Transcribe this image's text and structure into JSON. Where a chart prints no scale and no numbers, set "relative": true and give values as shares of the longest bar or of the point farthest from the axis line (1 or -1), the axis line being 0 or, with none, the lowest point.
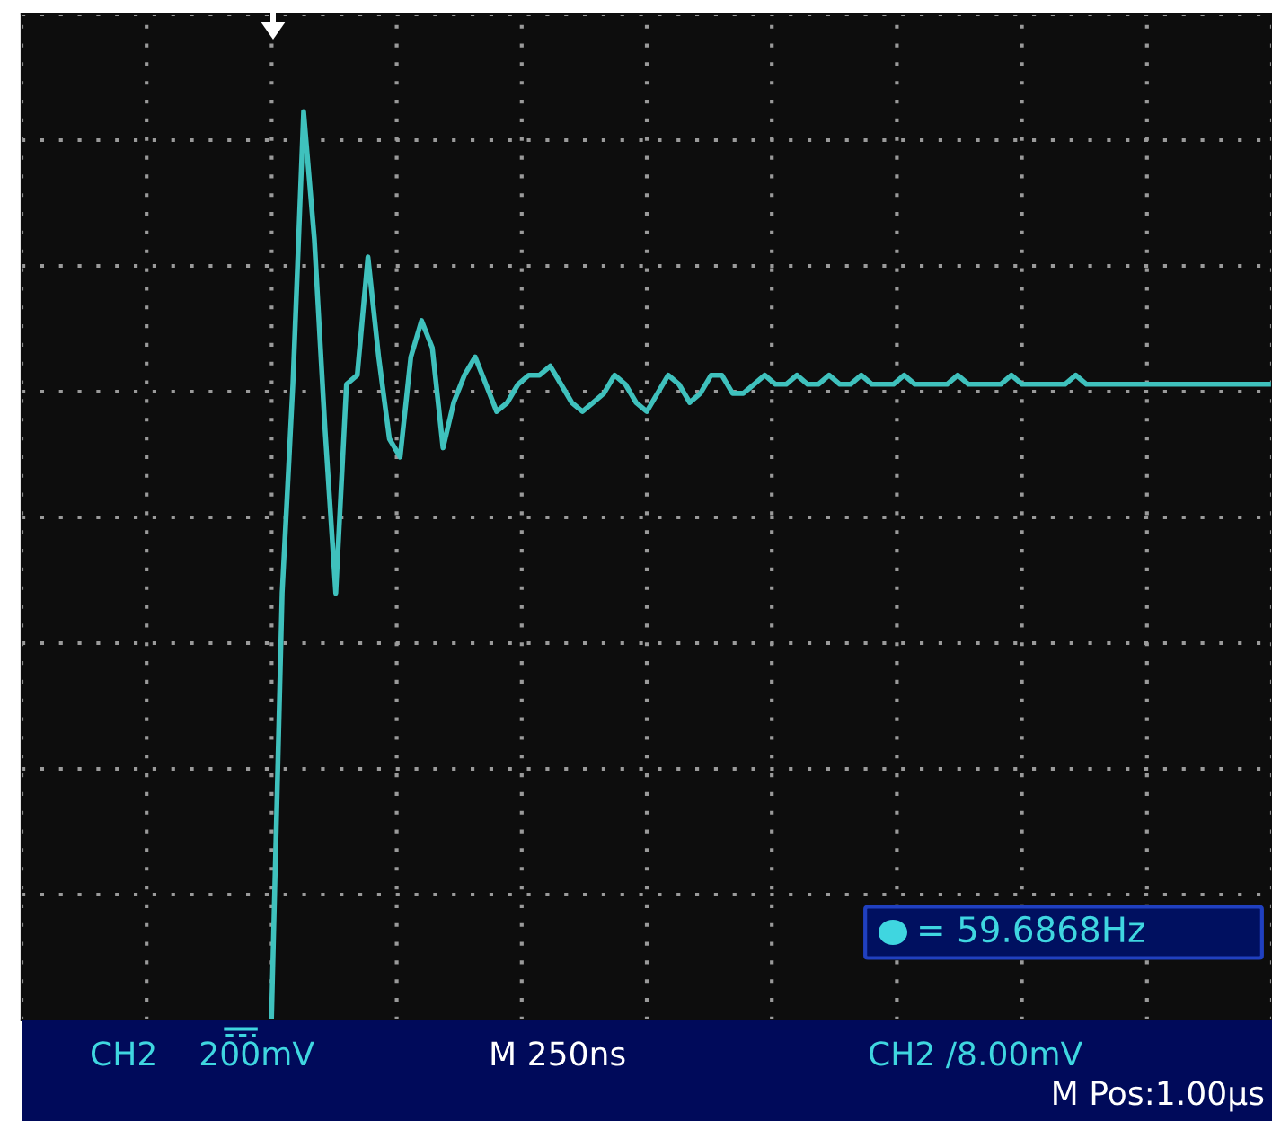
{
  "chart_data": {
    "type": "line",
    "relative": true,
    "grid": true,
    "tick_labels": false,
    "legend": false,
    "categories": [
      null,
      null,
      null,
      null,
      null,
      null,
      null,
      null,
      null,
      null,
      null,
      null,
      null,
      null,
      null,
      null,
      null,
      null,
      null,
      null,
      null,
      null,
      null,
      null,
      null,
      null,
      null,
      null,
      null,
      null,
      null,
      null,
      null,
      null,
      null,
      null,
      null,
      null,
      null,
      null,
      null,
      null,
      null,
      null,
      null,
      null,
      null,
      null,
      null,
      null,
      null,
      null,
      null,
      null,
      null,
      null,
      null,
      null,
      null,
      null,
      null,
      null,
      null,
      null,
      null,
      null,
      null,
      null,
      null,
      null,
      null,
      null,
      null,
      null,
      null,
      null,
      null,
      null,
      null,
      null,
      null,
      null,
      null,
      null,
      null,
      null,
      null,
      null,
      null,
      null,
      null,
      null,
      null,
      null,
      null,
      null,
      null,
      null,
      null,
      null,
      null,
      null,
      null,
      null,
      null,
      null,
      null,
      null,
      null,
      null,
      null,
      null,
      null,
      null,
      null,
      null,
      null
    ],
    "series": [
      {
        "color": "#3fc1bd",
        "values": [
          null,
          null,
          null,
          null,
          null,
          null,
          null,
          null,
          null,
          null,
          null,
          null,
          null,
          null,
          null,
          null,
          null,
          null,
          null,
          null,
          null,
          null,
          null,
          0,
          0.47,
          0.7,
          1.0,
          0.86,
          0.65,
          0.47,
          0.7,
          0.71,
          0.84,
          0.73,
          0.64,
          0.62,
          0.73,
          0.77,
          0.74,
          0.63,
          0.68,
          0.71,
          0.73,
          0.7,
          0.67,
          0.68,
          0.7,
          0.71,
          0.71,
          0.72,
          0.7,
          0.68,
          0.67,
          0.68,
          0.69,
          0.71,
          0.7,
          0.68,
          0.67,
          0.69,
          0.71,
          0.7,
          0.68,
          0.69,
          0.71,
          0.71,
          0.69,
          0.69,
          0.7,
          0.71,
          0.7,
          0.7,
          0.71,
          0.7,
          0.7,
          0.71,
          0.7,
          0.7,
          0.71,
          0.7,
          0.7,
          0.7,
          0.71,
          0.7,
          0.7,
          0.7,
          0.7,
          0.71,
          0.7,
          0.7,
          0.7,
          0.7,
          0.71,
          0.7,
          0.7,
          0.7,
          0.7,
          0.7,
          0.71,
          0.7,
          0.7,
          0.7,
          0.7,
          0.7,
          0.7,
          0.7,
          0.7,
          0.7,
          0.7,
          0.7,
          0.7,
          0.7,
          0.7,
          0.7,
          0.7,
          0.7,
          0.7
        ]
      }
    ],
    "annotations": [
      "CH2    200mV",
      "M 250ns",
      "CH2 /8.00mV",
      "M Pos:1.00μs",
      "= 59.6868Hz"
    ]
  }
}
